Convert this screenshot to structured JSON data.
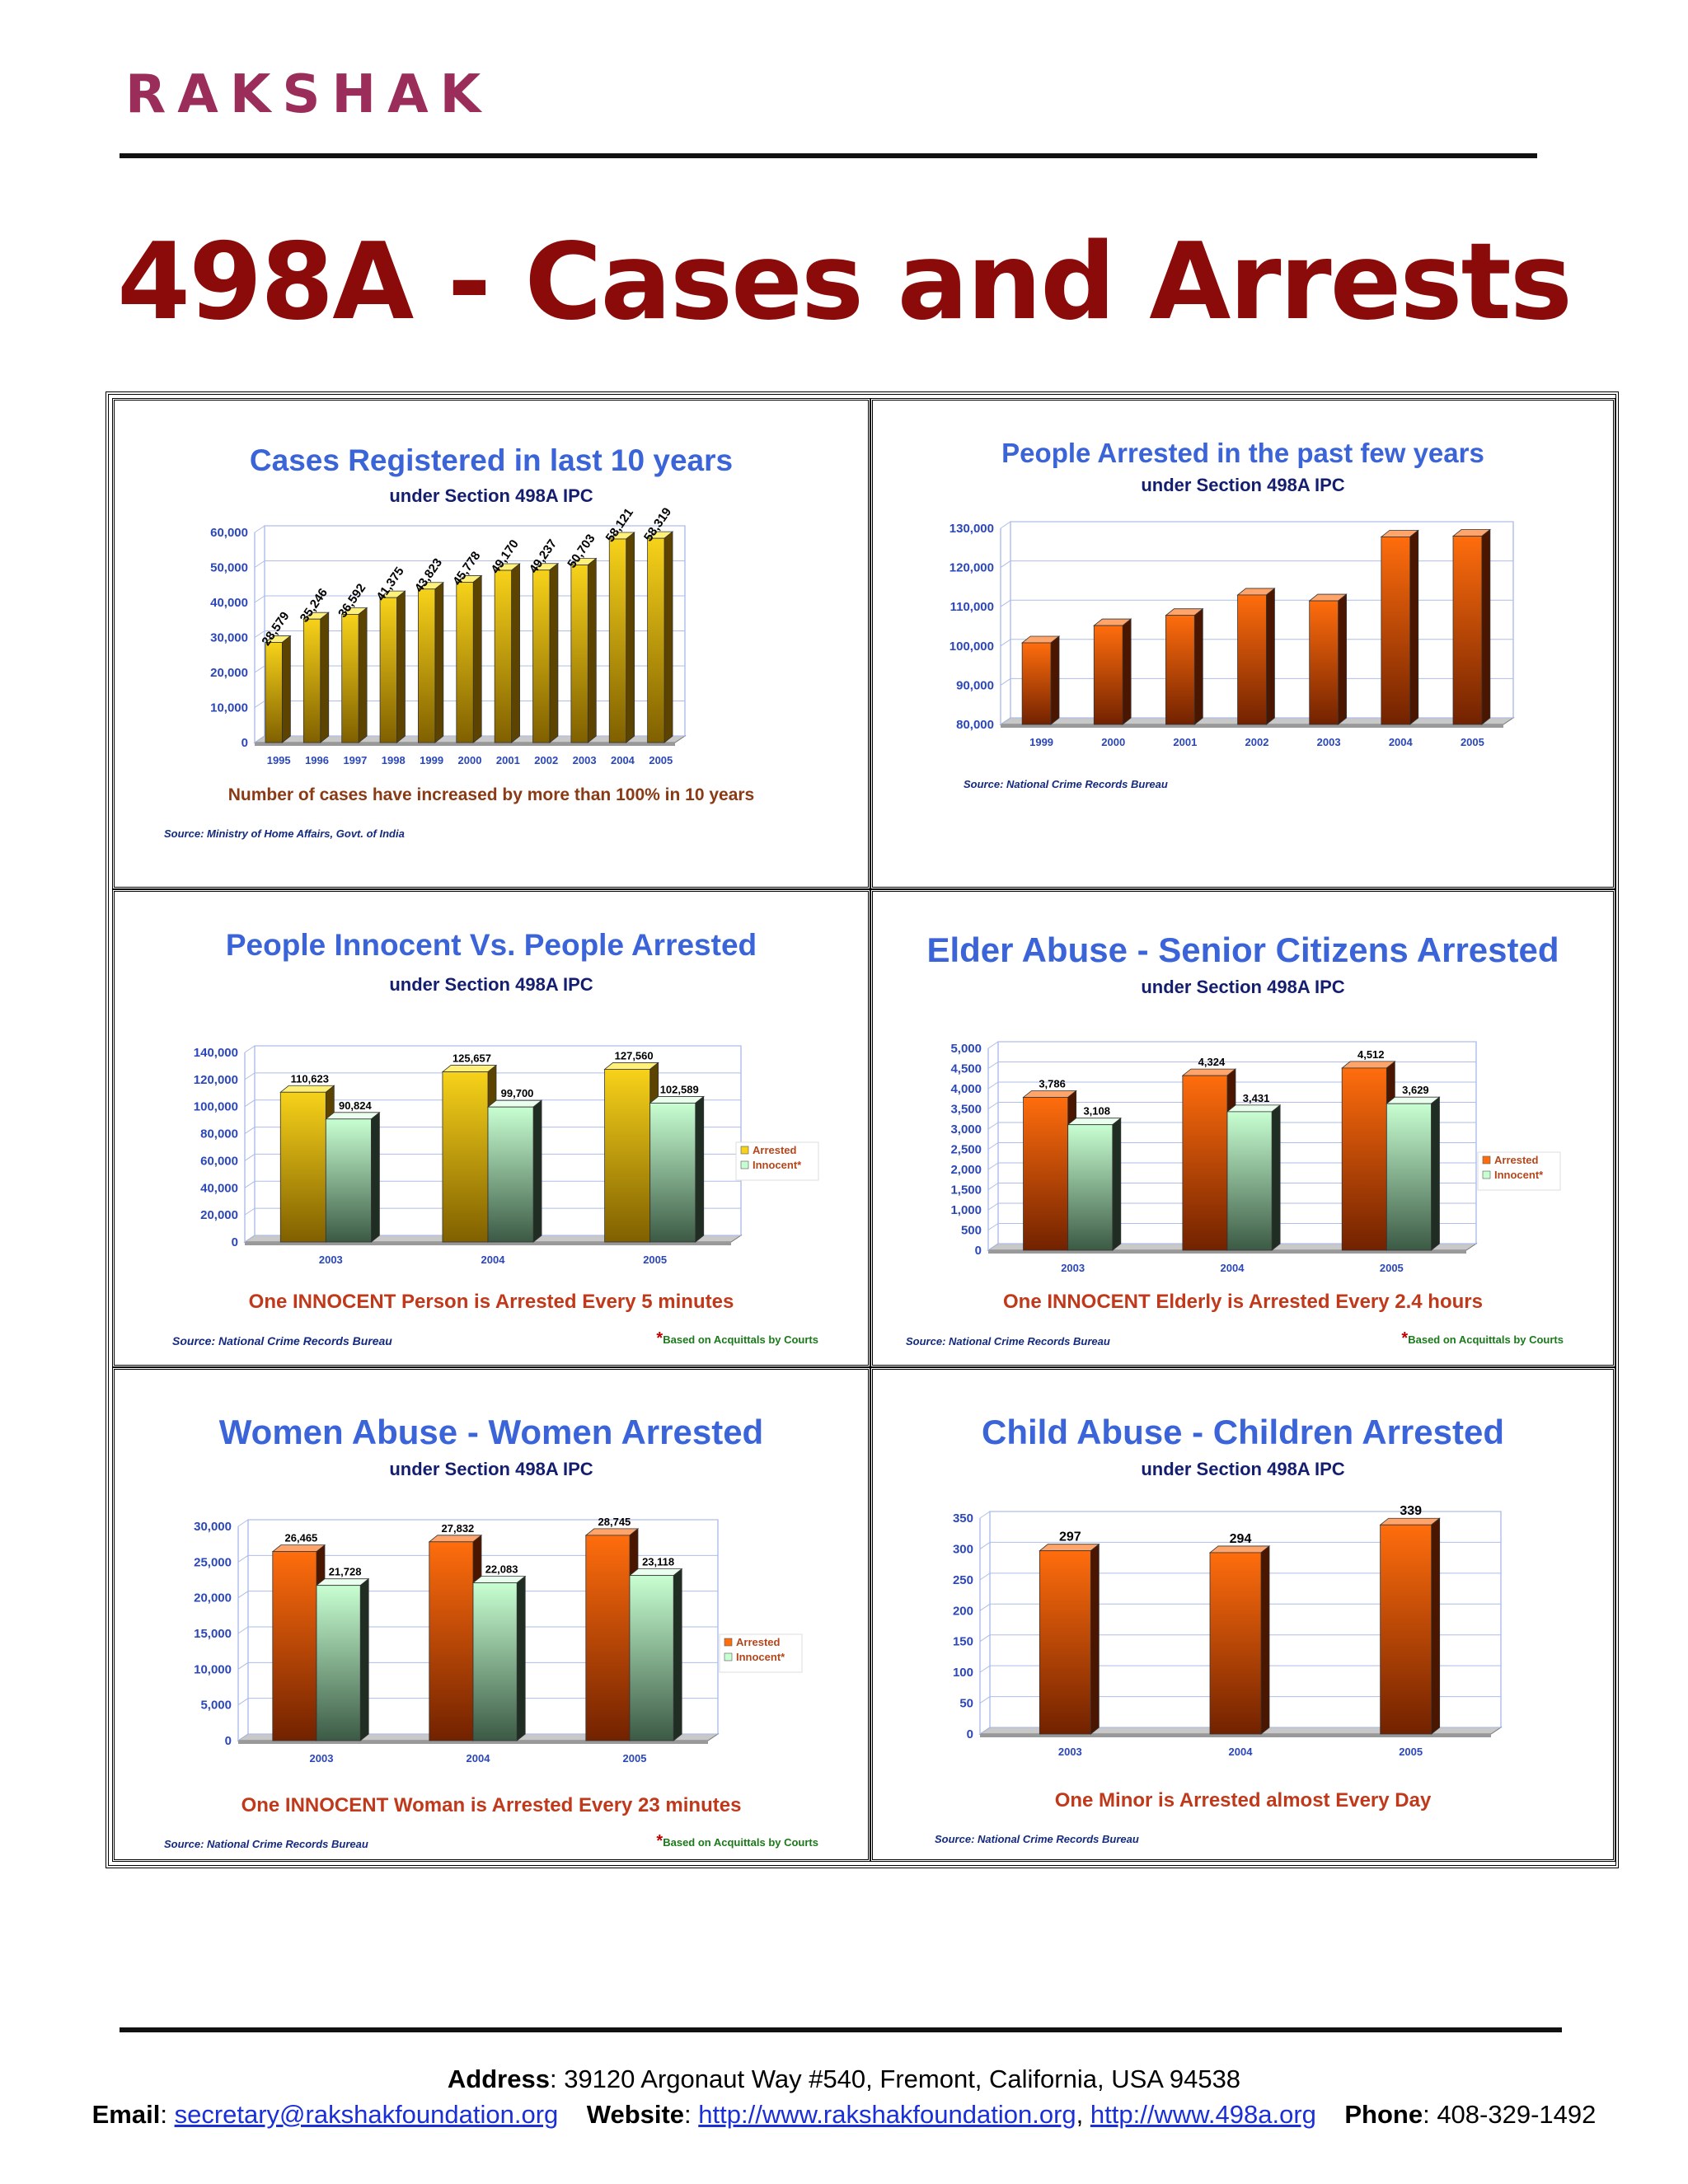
{
  "header": {
    "logo": "RAKSHAK",
    "title": "498A - Cases and Arrests"
  },
  "footer": {
    "address_label": "Address",
    "address": "39120 Argonaut Way #540, Fremont, California, USA 94538",
    "email_label": "Email",
    "email": "secretary@rakshakfoundation.org",
    "website_label": "Website",
    "website1": "http://www.rakshakfoundation.org",
    "website2": "http://www.498a.org",
    "phone_label": "Phone",
    "phone": "408-329-1492"
  },
  "colors": {
    "title": "#8b0b0b",
    "chart_title": "#3a64d8",
    "caption": "#c0391b",
    "gold": "#d8b400",
    "orange": "#f26a10",
    "green": "#bff5c8"
  },
  "chart_data": [
    {
      "id": "cases",
      "type": "bar",
      "title": "Cases Registered in last 10 years",
      "subtitle": "under Section 498A IPC",
      "categories": [
        "1995",
        "1996",
        "1997",
        "1998",
        "1999",
        "2000",
        "2001",
        "2002",
        "2003",
        "2004",
        "2005"
      ],
      "series": [
        {
          "values": [
            28579,
            35246,
            36592,
            41375,
            43823,
            45778,
            49170,
            49237,
            50703,
            58121,
            58319
          ],
          "color": "gold"
        }
      ],
      "data_labels": [
        "28,579",
        "35,246",
        "36,592",
        "41,375",
        "43,823",
        "45,778",
        "49,170",
        "49,237",
        "50,703",
        "58,121",
        "58,319"
      ],
      "ylim": [
        0,
        60000
      ],
      "y_ticks": [
        "0",
        "10,000",
        "20,000",
        "30,000",
        "40,000",
        "50,000",
        "60,000"
      ],
      "caption": "Number of cases have increased by more than 100% in 10 years",
      "source": "Source: Ministry of Home Affairs, Govt. of India",
      "note": "",
      "legend": []
    },
    {
      "id": "arrested",
      "type": "bar",
      "title": "People Arrested in the past few years",
      "subtitle": "under Section 498A IPC",
      "categories": [
        "1999",
        "2000",
        "2001",
        "2002",
        "2003",
        "2004",
        "2005"
      ],
      "series": [
        {
          "values": [
            100800,
            105200,
            107800,
            113000,
            111500,
            127800,
            128000
          ],
          "color": "orange"
        }
      ],
      "data_labels": [],
      "ylim": [
        80000,
        130000
      ],
      "y_ticks": [
        "80,000",
        "90,000",
        "100,000",
        "110,000",
        "120,000",
        "130,000"
      ],
      "caption": "",
      "source": "Source: National Crime Records Bureau",
      "note": "",
      "legend": []
    },
    {
      "id": "innocent",
      "type": "bar",
      "title": "People Innocent Vs. People Arrested",
      "subtitle": "under Section 498A IPC",
      "categories": [
        "2003",
        "2004",
        "2005"
      ],
      "series": [
        {
          "name": "Arrested",
          "values": [
            110623,
            125657,
            127560
          ],
          "labels": [
            "110,623",
            "125,657",
            "127,560"
          ],
          "color": "gold"
        },
        {
          "name": "Innocent*",
          "values": [
            90824,
            99700,
            102589
          ],
          "labels": [
            "90,824",
            "99,700",
            "102,589"
          ],
          "color": "green"
        }
      ],
      "ylim": [
        0,
        140000
      ],
      "y_ticks": [
        "0",
        "20,000",
        "40,000",
        "60,000",
        "80,000",
        "100,000",
        "120,000",
        "140,000"
      ],
      "caption": "One INNOCENT Person is Arrested Every 5 minutes",
      "source": "Source: National Crime Records Bureau",
      "note_mark": "*",
      "note": "Based on Acquittals by Courts",
      "legend": [
        "Arrested",
        "Innocent*"
      ]
    },
    {
      "id": "elder",
      "type": "bar",
      "title": "Elder Abuse - Senior Citizens Arrested",
      "subtitle": "under Section 498A IPC",
      "categories": [
        "2003",
        "2004",
        "2005"
      ],
      "series": [
        {
          "name": "Arrested",
          "values": [
            3786,
            4324,
            4512
          ],
          "labels": [
            "3,786",
            "4,324",
            "4,512"
          ],
          "color": "orange"
        },
        {
          "name": "Innocent*",
          "values": [
            3108,
            3431,
            3629
          ],
          "labels": [
            "3,108",
            "3,431",
            "3,629"
          ],
          "color": "green"
        }
      ],
      "ylim": [
        0,
        5000
      ],
      "y_ticks": [
        "0",
        "500",
        "1,000",
        "1,500",
        "2,000",
        "2,500",
        "3,000",
        "3,500",
        "4,000",
        "4,500",
        "5,000"
      ],
      "caption": "One INNOCENT Elderly is Arrested Every 2.4 hours",
      "source": "Source: National Crime Records Bureau",
      "note_mark": "*",
      "note": "Based on Acquittals by Courts",
      "legend": [
        "Arrested",
        "Innocent*"
      ]
    },
    {
      "id": "women",
      "type": "bar",
      "title": "Women Abuse - Women Arrested",
      "subtitle": "under Section 498A IPC",
      "categories": [
        "2003",
        "2004",
        "2005"
      ],
      "series": [
        {
          "name": "Arrested",
          "values": [
            26465,
            27832,
            28745
          ],
          "labels": [
            "26,465",
            "27,832",
            "28,745"
          ],
          "color": "orange"
        },
        {
          "name": "Innocent*",
          "values": [
            21728,
            22083,
            23118
          ],
          "labels": [
            "21,728",
            "22,083",
            "23,118"
          ],
          "color": "green"
        }
      ],
      "ylim": [
        0,
        30000
      ],
      "y_ticks": [
        "0",
        "5,000",
        "10,000",
        "15,000",
        "20,000",
        "25,000",
        "30,000"
      ],
      "caption": "One INNOCENT Woman is Arrested Every 23 minutes",
      "source": "Source: National Crime Records Bureau",
      "note_mark": "*",
      "note": "Based on Acquittals by Courts",
      "legend": [
        "Arrested",
        "Innocent*"
      ]
    },
    {
      "id": "child",
      "type": "bar",
      "title": "Child Abuse - Children Arrested",
      "subtitle": "under Section 498A IPC",
      "categories": [
        "2003",
        "2004",
        "2005"
      ],
      "series": [
        {
          "values": [
            297,
            294,
            339
          ],
          "color": "orange"
        }
      ],
      "data_labels": [
        "297",
        "294",
        "339"
      ],
      "ylim": [
        0,
        350
      ],
      "y_ticks": [
        "0",
        "50",
        "100",
        "150",
        "200",
        "250",
        "300",
        "350"
      ],
      "caption": "One Minor is Arrested almost Every Day",
      "source": "Source: National Crime Records Bureau",
      "note": "",
      "legend": []
    }
  ]
}
